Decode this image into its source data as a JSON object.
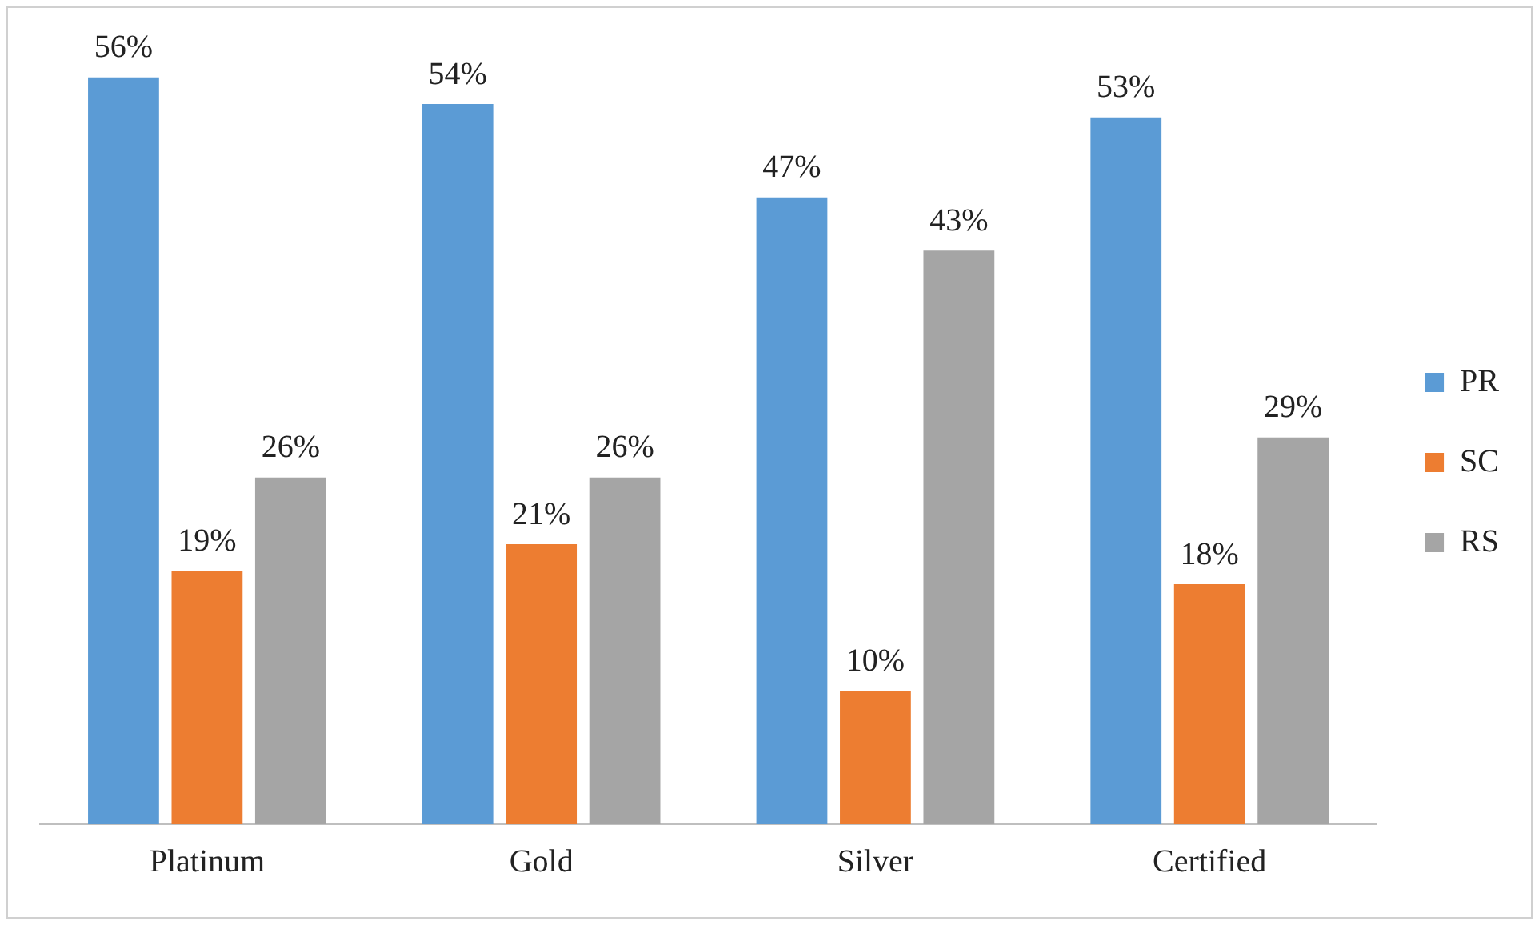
{
  "chart_data": {
    "type": "bar",
    "categories": [
      "Platinum",
      "Gold",
      "Silver",
      "Certified"
    ],
    "series": [
      {
        "name": "PR",
        "color": "#5b9bd5",
        "values": [
          56,
          54,
          47,
          53
        ],
        "value_labels": [
          "56%",
          "54%",
          "47%",
          "53%"
        ]
      },
      {
        "name": "SC",
        "color": "#ed7d31",
        "values": [
          19,
          21,
          10,
          18
        ],
        "value_labels": [
          "19%",
          "21%",
          "10%",
          "18%"
        ]
      },
      {
        "name": "RS",
        "color": "#a5a5a5",
        "values": [
          26,
          26,
          43,
          29
        ],
        "value_labels": [
          "26%",
          "26%",
          "43%",
          "29%"
        ]
      }
    ],
    "legend": "right",
    "grid": false
  }
}
